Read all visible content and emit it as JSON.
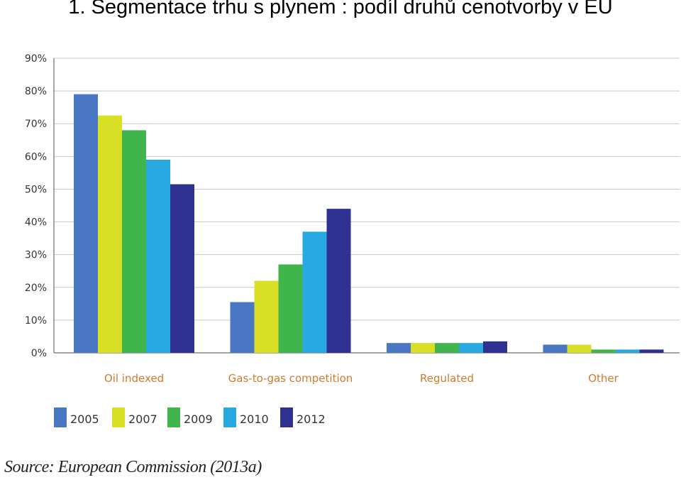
{
  "title": "1. Segmentace trhu s plynem : podíl druhů cenotvorby v EU",
  "source": "Source: European Commission (2013a)",
  "chart_data": {
    "type": "bar",
    "categories": [
      "Oil indexed",
      "Gas-to-gas competition",
      "Regulated",
      "Other"
    ],
    "series": [
      {
        "name": "2005",
        "color": "#4a77c4",
        "values": [
          79,
          15.5,
          3,
          2.5
        ]
      },
      {
        "name": "2007",
        "color": "#d9df24",
        "values": [
          72.5,
          22,
          3,
          2.5
        ]
      },
      {
        "name": "2009",
        "color": "#3fb54b",
        "values": [
          68,
          27,
          3,
          1
        ]
      },
      {
        "name": "2010",
        "color": "#27a9e1",
        "values": [
          59,
          37,
          3,
          1
        ]
      },
      {
        "name": "2012",
        "color": "#2e3192",
        "values": [
          51.5,
          44,
          3.5,
          1
        ]
      }
    ],
    "ylim": [
      0,
      90
    ],
    "yticks": [
      "0%",
      "10%",
      "20%",
      "30%",
      "40%",
      "50%",
      "60%",
      "70%",
      "80%",
      "90%"
    ],
    "grid": true,
    "legend_position": "bottom-left"
  }
}
